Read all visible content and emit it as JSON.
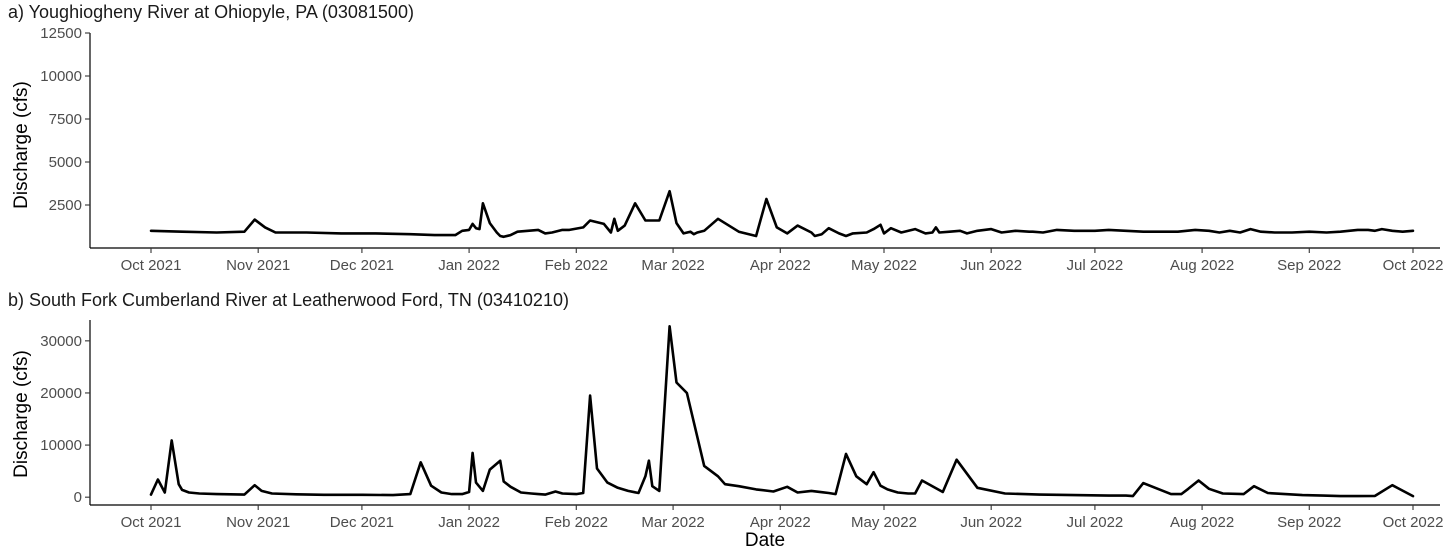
{
  "chart_data": [
    {
      "type": "line",
      "title": "a) Youghiogheny River at Ohiopyle, PA (03081500)",
      "xlabel": "",
      "ylabel": "Discharge (cfs)",
      "ylim": [
        0,
        12500
      ],
      "yticks": [
        "2500",
        "5000",
        "7500",
        "10000",
        "12500"
      ],
      "xticks": [
        "Oct 2021",
        "Nov 2021",
        "Dec 2021",
        "Jan 2022",
        "Feb 2022",
        "Mar 2022",
        "Apr 2022",
        "May 2022",
        "Jun 2022",
        "Jul 2022",
        "Aug 2022",
        "Sep 2022",
        "Oct 2022"
      ],
      "grid": false,
      "legend": "none",
      "series": [
        {
          "x": [
            "2021-10-01",
            "2021-10-10",
            "2021-10-20",
            "2021-10-28",
            "2021-10-31",
            "2021-11-03",
            "2021-11-06",
            "2021-11-15",
            "2021-11-25",
            "2021-12-05",
            "2021-12-15",
            "2021-12-22",
            "2021-12-28",
            "2021-12-30",
            "2022-01-01",
            "2022-01-02",
            "2022-01-03",
            "2022-01-04",
            "2022-01-05",
            "2022-01-07",
            "2022-01-09",
            "2022-01-10",
            "2022-01-11",
            "2022-01-13",
            "2022-01-15",
            "2022-01-18",
            "2022-01-21",
            "2022-01-23",
            "2022-01-25",
            "2022-01-28",
            "2022-01-30",
            "2022-02-03",
            "2022-02-05",
            "2022-02-09",
            "2022-02-11",
            "2022-02-12",
            "2022-02-13",
            "2022-02-15",
            "2022-02-18",
            "2022-02-21",
            "2022-02-25",
            "2022-02-28",
            "2022-03-02",
            "2022-03-04",
            "2022-03-06",
            "2022-03-07",
            "2022-03-08",
            "2022-03-10",
            "2022-03-14",
            "2022-03-20",
            "2022-03-25",
            "2022-03-28",
            "2022-03-31",
            "2022-04-03",
            "2022-04-06",
            "2022-04-10",
            "2022-04-11",
            "2022-04-13",
            "2022-04-15",
            "2022-04-18",
            "2022-04-20",
            "2022-04-22",
            "2022-04-26",
            "2022-04-28",
            "2022-04-30",
            "2022-05-01",
            "2022-05-03",
            "2022-05-06",
            "2022-05-10",
            "2022-05-13",
            "2022-05-15",
            "2022-05-16",
            "2022-05-17",
            "2022-05-20",
            "2022-05-23",
            "2022-05-25",
            "2022-05-28",
            "2022-06-01",
            "2022-06-04",
            "2022-06-08",
            "2022-06-12",
            "2022-06-13",
            "2022-06-16",
            "2022-06-20",
            "2022-06-25",
            "2022-07-01",
            "2022-07-05",
            "2022-07-10",
            "2022-07-15",
            "2022-07-20",
            "2022-07-25",
            "2022-07-30",
            "2022-08-03",
            "2022-08-06",
            "2022-08-09",
            "2022-08-12",
            "2022-08-15",
            "2022-08-18",
            "2022-08-22",
            "2022-08-27",
            "2022-09-01",
            "2022-09-06",
            "2022-09-10",
            "2022-09-15",
            "2022-09-18",
            "2022-09-20",
            "2022-09-22",
            "2022-09-25",
            "2022-09-28",
            "2022-10-01"
          ],
          "y": [
            1000,
            950,
            900,
            950,
            1650,
            1200,
            900,
            900,
            850,
            850,
            800,
            750,
            750,
            1000,
            1050,
            1400,
            1150,
            1100,
            2600,
            1450,
            900,
            700,
            650,
            750,
            950,
            1000,
            1050,
            850,
            900,
            1050,
            1050,
            1200,
            1600,
            1400,
            900,
            1700,
            1000,
            1300,
            2600,
            1600,
            1600,
            3300,
            1450,
            850,
            950,
            800,
            900,
            1000,
            1700,
            950,
            700,
            2850,
            1200,
            850,
            1300,
            900,
            700,
            800,
            1150,
            850,
            700,
            850,
            900,
            1100,
            1350,
            850,
            1150,
            900,
            1100,
            850,
            900,
            1200,
            900,
            950,
            1000,
            850,
            1000,
            1100,
            900,
            1000,
            950,
            950,
            900,
            1050,
            1000,
            1000,
            1050,
            1000,
            950,
            950,
            950,
            1050,
            1000,
            900,
            1000,
            900,
            1100,
            950,
            900,
            900,
            950,
            900,
            950,
            1050,
            1050,
            1000,
            1100,
            1000,
            950,
            1000
          ]
        }
      ]
    },
    {
      "type": "line",
      "title": "b) South Fork Cumberland River at Leatherwood Ford, TN (03410210)",
      "xlabel": "Date",
      "ylabel": "Discharge (cfs)",
      "ylim": [
        -1500,
        34000
      ],
      "yticks": [
        "0",
        "10000",
        "20000",
        "30000"
      ],
      "xticks": [
        "Oct 2021",
        "Nov 2021",
        "Dec 2021",
        "Jan 2022",
        "Feb 2022",
        "Mar 2022",
        "Apr 2022",
        "May 2022",
        "Jun 2022",
        "Jul 2022",
        "Aug 2022",
        "Sep 2022",
        "Oct 2022"
      ],
      "grid": false,
      "legend": "none",
      "series": [
        {
          "x": [
            "2021-10-01",
            "2021-10-03",
            "2021-10-05",
            "2021-10-07",
            "2021-10-09",
            "2021-10-10",
            "2021-10-12",
            "2021-10-15",
            "2021-10-20",
            "2021-10-28",
            "2021-10-31",
            "2021-11-02",
            "2021-11-05",
            "2021-11-12",
            "2021-11-20",
            "2021-12-01",
            "2021-12-10",
            "2021-12-15",
            "2021-12-18",
            "2021-12-21",
            "2021-12-24",
            "2021-12-27",
            "2021-12-30",
            "2022-01-01",
            "2022-01-02",
            "2022-01-03",
            "2022-01-05",
            "2022-01-07",
            "2022-01-10",
            "2022-01-11",
            "2022-01-13",
            "2022-01-16",
            "2022-01-19",
            "2022-01-21",
            "2022-01-23",
            "2022-01-26",
            "2022-01-28",
            "2022-02-01",
            "2022-02-03",
            "2022-02-05",
            "2022-02-07",
            "2022-02-10",
            "2022-02-13",
            "2022-02-16",
            "2022-02-19",
            "2022-02-21",
            "2022-02-22",
            "2022-02-23",
            "2022-02-25",
            "2022-02-28",
            "2022-03-02",
            "2022-03-05",
            "2022-03-10",
            "2022-03-14",
            "2022-03-16",
            "2022-03-20",
            "2022-03-25",
            "2022-03-30",
            "2022-04-03",
            "2022-04-06",
            "2022-04-10",
            "2022-04-13",
            "2022-04-15",
            "2022-04-17",
            "2022-04-20",
            "2022-04-23",
            "2022-04-26",
            "2022-04-28",
            "2022-04-30",
            "2022-05-02",
            "2022-05-05",
            "2022-05-08",
            "2022-05-10",
            "2022-05-12",
            "2022-05-18",
            "2022-05-22",
            "2022-05-28",
            "2022-06-05",
            "2022-06-15",
            "2022-06-25",
            "2022-07-05",
            "2022-07-10",
            "2022-07-12",
            "2022-07-15",
            "2022-07-20",
            "2022-07-23",
            "2022-07-26",
            "2022-07-28",
            "2022-07-31",
            "2022-08-03",
            "2022-08-07",
            "2022-08-13",
            "2022-08-16",
            "2022-08-20",
            "2022-08-25",
            "2022-08-30",
            "2022-09-05",
            "2022-09-10",
            "2022-09-15",
            "2022-09-20",
            "2022-09-25",
            "2022-10-01"
          ],
          "y": [
            500,
            3400,
            900,
            10900,
            2500,
            1400,
            900,
            700,
            600,
            500,
            2300,
            1200,
            700,
            550,
            450,
            450,
            400,
            600,
            6700,
            2200,
            900,
            600,
            600,
            1000,
            8500,
            2800,
            1200,
            5300,
            7000,
            3000,
            2000,
            900,
            700,
            600,
            500,
            1100,
            700,
            600,
            800,
            19500,
            5500,
            2800,
            1800,
            1200,
            800,
            4000,
            7000,
            2100,
            1200,
            32800,
            22000,
            20000,
            6000,
            4000,
            2500,
            2100,
            1500,
            1100,
            2000,
            900,
            1200,
            950,
            800,
            600,
            8300,
            4000,
            2500,
            4800,
            2200,
            1500,
            900,
            700,
            700,
            3200,
            1000,
            7200,
            1800,
            700,
            500,
            400,
            300,
            300,
            200,
            2700,
            1400,
            600,
            600,
            1600,
            3200,
            1600,
            700,
            600,
            2100,
            800,
            600,
            400,
            300,
            200,
            200,
            250,
            2300,
            200
          ]
        }
      ]
    }
  ]
}
